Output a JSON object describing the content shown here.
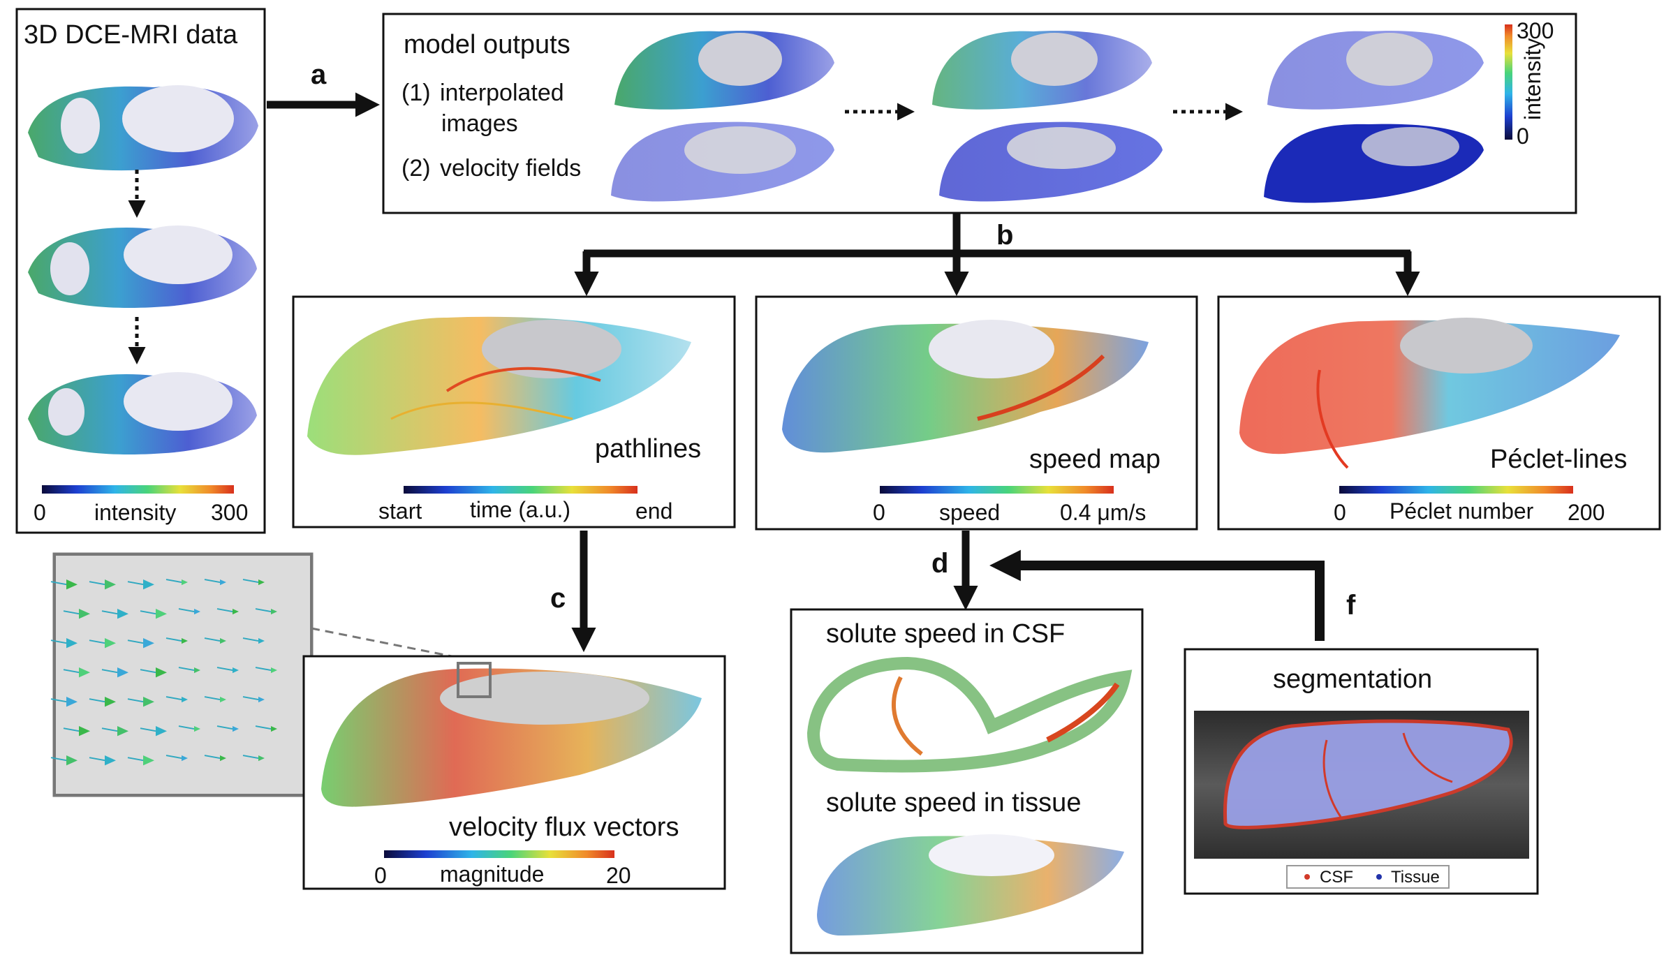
{
  "steps": {
    "a": "a",
    "b": "b",
    "c": "c",
    "d": "d",
    "f": "f"
  },
  "input_panel": {
    "title": "3D DCE-MRI data",
    "colorbar": {
      "min": "0",
      "label": "intensity",
      "max": "300"
    }
  },
  "model_panel": {
    "title": "model outputs",
    "item1_num": "(1)",
    "item1_line1": "interpolated",
    "item1_line2": "images",
    "item2_num": "(2)",
    "item2_text": "velocity fields",
    "colorbar": {
      "max": "300",
      "label": "intensity",
      "min": "0"
    }
  },
  "pathlines_panel": {
    "title": "pathlines",
    "colorbar": {
      "start": "start",
      "label": "time (a.u.)",
      "end": "end"
    }
  },
  "speed_panel": {
    "title": "speed map",
    "colorbar": {
      "min": "0",
      "label": "speed",
      "max": "0.4 μm/s"
    }
  },
  "peclet_panel": {
    "title": "Péclet-lines",
    "colorbar": {
      "min": "0",
      "label": "Péclet number",
      "max": "200"
    }
  },
  "flux_panel": {
    "title": "velocity flux vectors",
    "colorbar": {
      "min": "0",
      "label": "magnitude",
      "max": "20"
    }
  },
  "solute_panel": {
    "title_csf": "solute speed in CSF",
    "title_tissue": "solute speed in tissue"
  },
  "segmentation_panel": {
    "title": "segmentation",
    "legend_csf": "CSF",
    "legend_tissue": "Tissue"
  },
  "colors": {
    "jet_low": "#0a0a5a",
    "jet_mid": "#3fd07a",
    "jet_high": "#e8431c",
    "csf_red": "#d23a2a",
    "tissue_blue": "#2233aa"
  }
}
